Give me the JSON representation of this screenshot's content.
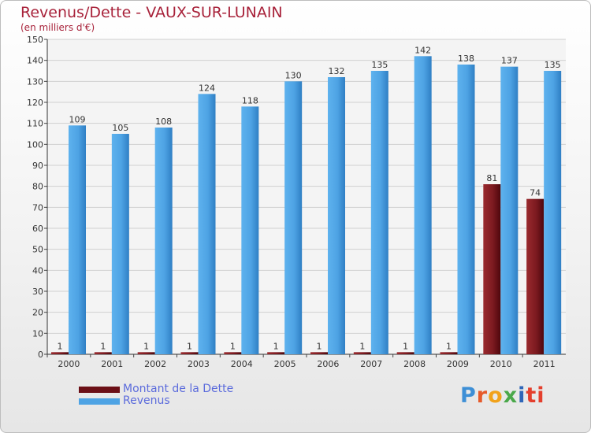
{
  "chart_data": {
    "type": "bar",
    "title": "Revenus/Dette - VAUX-SUR-LUNAIN",
    "subtitle": "(en milliers d'€)",
    "categories": [
      "2000",
      "2001",
      "2002",
      "2003",
      "2004",
      "2005",
      "2006",
      "2007",
      "2008",
      "2009",
      "2010",
      "2011"
    ],
    "series": [
      {
        "name": "Montant de la Dette",
        "color": "#6b0f16",
        "values": [
          1,
          1,
          1,
          1,
          1,
          1,
          1,
          1,
          1,
          1,
          81,
          74
        ]
      },
      {
        "name": "Revenus",
        "color": "#4ea3e4",
        "values": [
          109,
          105,
          108,
          124,
          118,
          130,
          132,
          135,
          142,
          138,
          137,
          135
        ]
      }
    ],
    "ylim": [
      0,
      150
    ],
    "yticks": [
      0,
      10,
      20,
      30,
      40,
      50,
      60,
      70,
      80,
      90,
      100,
      110,
      120,
      130,
      140,
      150
    ],
    "grid": true,
    "legend": "bottom-left"
  },
  "logo_text": "Proxiti",
  "logo_letters": [
    "P",
    "r",
    "o",
    "x",
    "i",
    "ti"
  ]
}
